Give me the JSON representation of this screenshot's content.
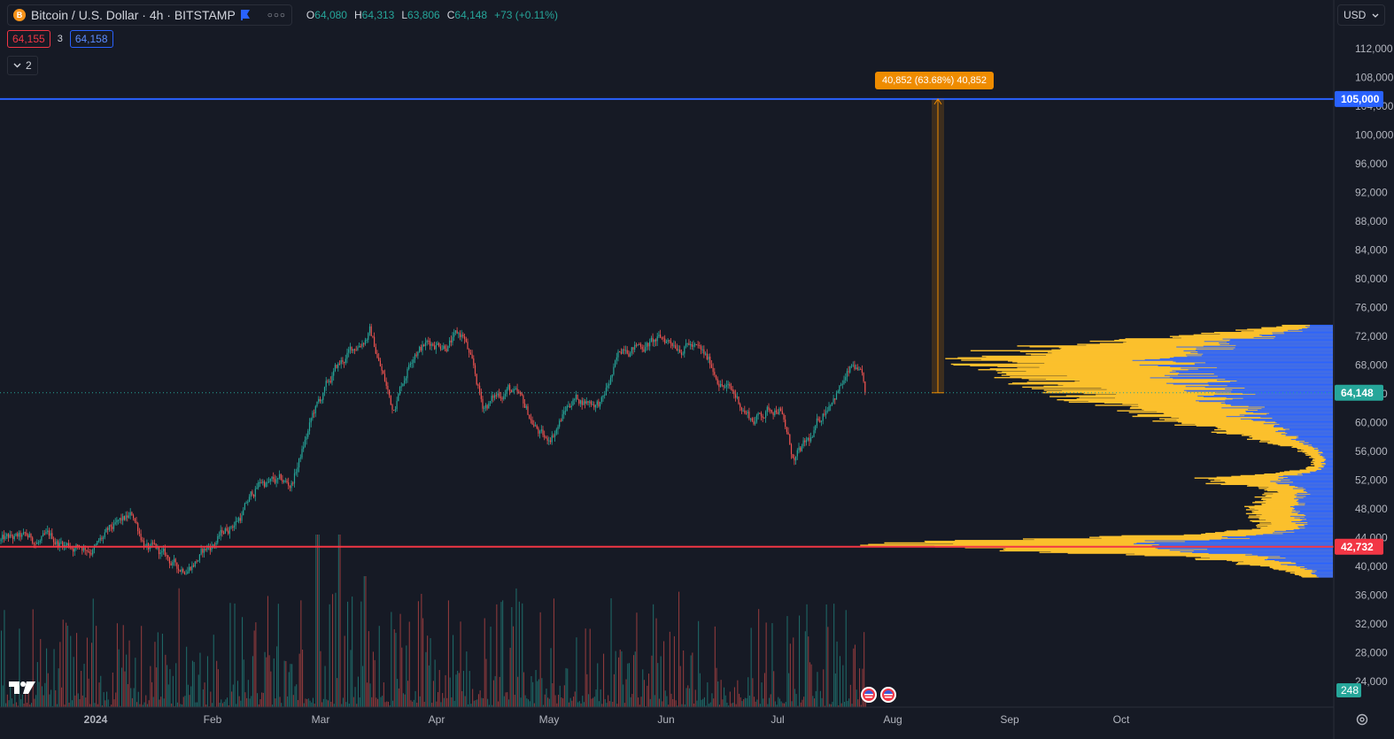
{
  "header": {
    "symbol_title": "Bitcoin / U.S. Dollar · 4h · BITSTAMP",
    "logo_letter": "B",
    "ohlc": {
      "o_label": "O",
      "o": "64,080",
      "h_label": "H",
      "h": "64,313",
      "l_label": "L",
      "l": "63,806",
      "c_label": "C",
      "c": "64,148",
      "change": "+73 (+0.11%)"
    },
    "bid": "64,155",
    "spread": "3",
    "ask": "64,158",
    "collapse_count": "2",
    "currency": "USD"
  },
  "colors": {
    "background": "#161a25",
    "up": "#26a69a",
    "down": "#ef5350",
    "blue_line": "#2962ff",
    "red_line": "#f23645",
    "vp_up": "#fbc02d",
    "vp_down": "#2962ff",
    "measure": "#ef8c00"
  },
  "measure_label": "40,852 (63.68%) 40,852",
  "price_axis": {
    "ticks": [
      "112,000",
      "108,000",
      "104,000",
      "100,000",
      "96,000",
      "92,000",
      "88,000",
      "84,000",
      "80,000",
      "76,000",
      "72,000",
      "68,000",
      "64,000",
      "60,000",
      "56,000",
      "52,000",
      "48,000",
      "44,000",
      "40,000",
      "36,000",
      "32,000",
      "28,000",
      "24,000"
    ],
    "tick_values": [
      112000,
      108000,
      104000,
      100000,
      96000,
      92000,
      88000,
      84000,
      80000,
      76000,
      72000,
      68000,
      64000,
      60000,
      56000,
      52000,
      48000,
      44000,
      40000,
      36000,
      32000,
      28000,
      24000
    ],
    "blue_line_label": "105,000",
    "blue_line_value": 105000,
    "last_price_label": "64,148",
    "last_price_value": 64148,
    "red_line_label": "42,732",
    "red_line_value": 42732,
    "volume_label": "248"
  },
  "time_axis": {
    "labels": [
      "2024",
      "Feb",
      "Mar",
      "Apr",
      "May",
      "Jun",
      "Jul",
      "Aug",
      "Sep",
      "Oct"
    ]
  },
  "chart_data": {
    "type": "candlestick",
    "symbol": "BTCUSD",
    "interval": "4h",
    "series": [
      {
        "date": "2024-01-01",
        "close": 43000
      },
      {
        "date": "2024-01-11",
        "close": 46500
      },
      {
        "date": "2024-01-15",
        "close": 42500
      },
      {
        "date": "2024-01-23",
        "close": 39500
      },
      {
        "date": "2024-02-01",
        "close": 43000
      },
      {
        "date": "2024-02-09",
        "close": 47500
      },
      {
        "date": "2024-02-14",
        "close": 51800
      },
      {
        "date": "2024-02-22",
        "close": 51000
      },
      {
        "date": "2024-02-28",
        "close": 61000
      },
      {
        "date": "2024-03-05",
        "close": 67000
      },
      {
        "date": "2024-03-14",
        "close": 73000
      },
      {
        "date": "2024-03-20",
        "close": 62000
      },
      {
        "date": "2024-03-26",
        "close": 71000
      },
      {
        "date": "2024-04-08",
        "close": 72000
      },
      {
        "date": "2024-04-13",
        "close": 62000
      },
      {
        "date": "2024-04-20",
        "close": 65000
      },
      {
        "date": "2024-04-30",
        "close": 57000
      },
      {
        "date": "2024-05-07",
        "close": 63500
      },
      {
        "date": "2024-05-15",
        "close": 63000
      },
      {
        "date": "2024-05-21",
        "close": 71000
      },
      {
        "date": "2024-06-07",
        "close": 71500
      },
      {
        "date": "2024-06-17",
        "close": 65000
      },
      {
        "date": "2024-06-24",
        "close": 60500
      },
      {
        "date": "2024-07-01",
        "close": 62800
      },
      {
        "date": "2024-07-05",
        "close": 54500
      },
      {
        "date": "2024-07-10",
        "close": 57500
      },
      {
        "date": "2024-07-15",
        "close": 64000
      },
      {
        "date": "2024-07-21",
        "close": 67500
      },
      {
        "date": "2024-07-24",
        "close": 64148
      }
    ],
    "horizontal_lines": [
      105000,
      42732
    ],
    "measure": {
      "from": 64148,
      "to": 105000,
      "change": 40852,
      "percent": 63.68
    },
    "volume_profile": true
  }
}
